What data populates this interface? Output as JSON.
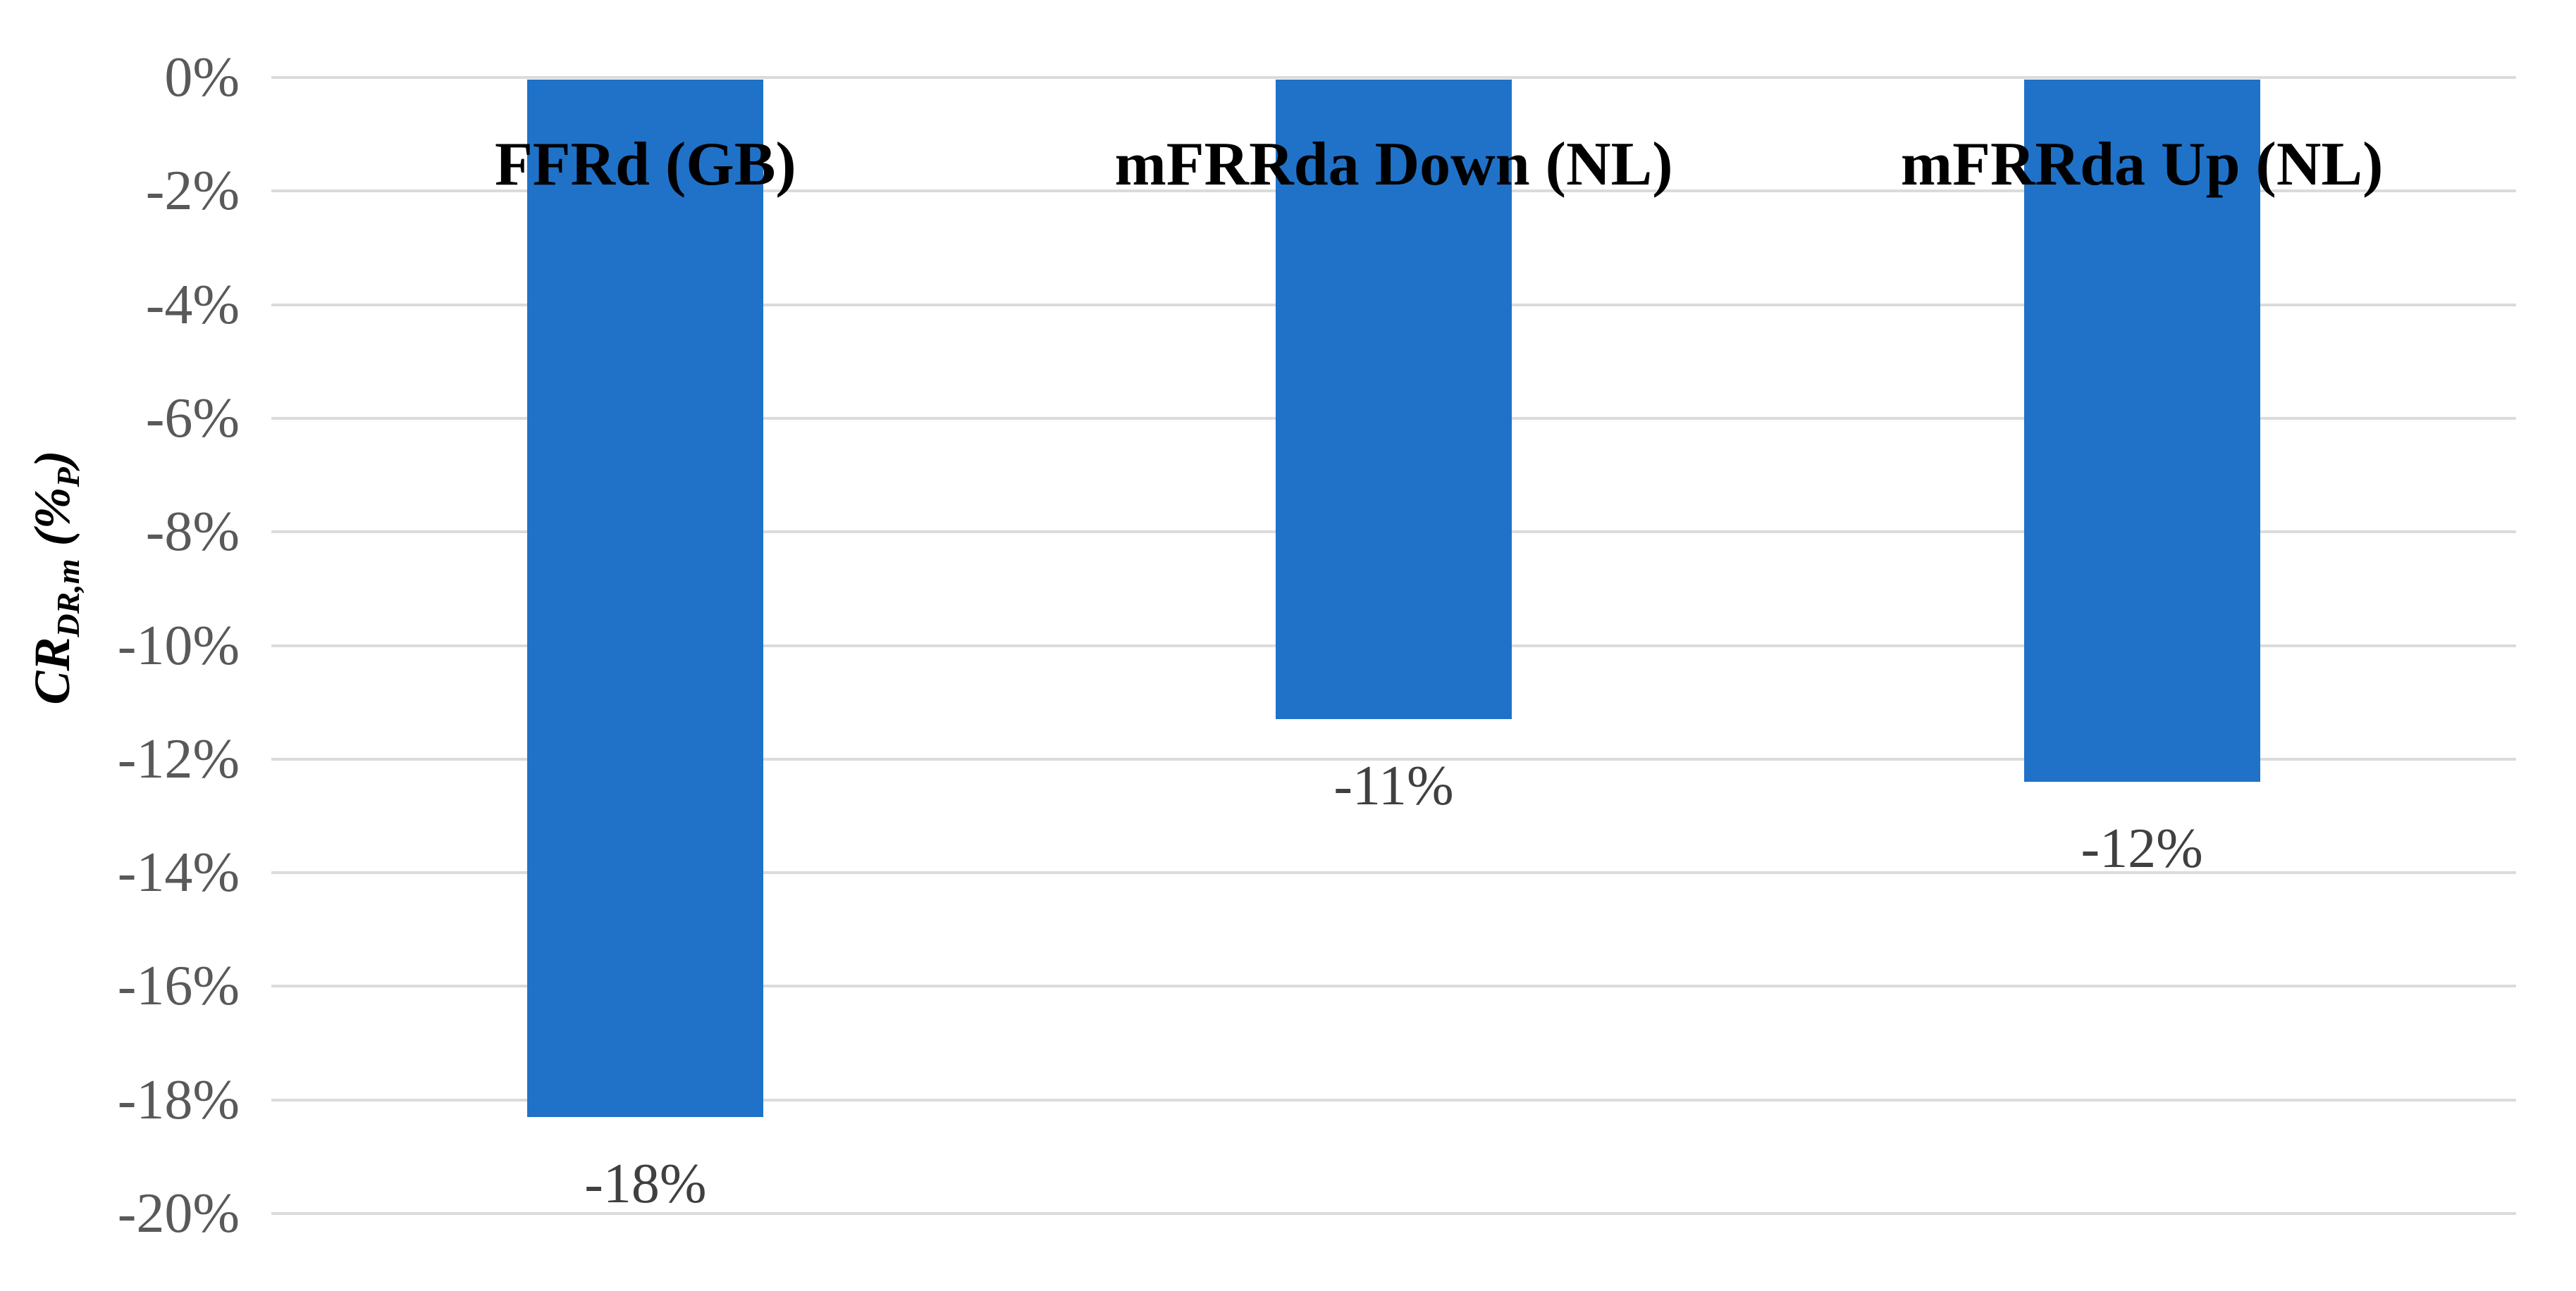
{
  "chart_data": {
    "type": "bar",
    "title": "",
    "categories": [
      "FFRd (GB)",
      "mFRRda Down (NL)",
      "mFRRda Up (NL)"
    ],
    "values": [
      -18.3,
      -11.3,
      -12.4
    ],
    "data_labels": [
      "-18%",
      "-11%",
      "-12%"
    ],
    "ylabel": "CR_DR,m (%_P)",
    "ylabel_parts": {
      "main": "CR",
      "main_sub": "DR,m",
      "unit_pre": " (%",
      "unit_sub": "P",
      "unit_post": ")"
    },
    "yticks": [
      "0%",
      "-2%",
      "-4%",
      "-6%",
      "-8%",
      "-10%",
      "-12%",
      "-14%",
      "-16%",
      "-18%",
      "-20%"
    ],
    "ytick_values": [
      0,
      -2,
      -4,
      -6,
      -8,
      -10,
      -12,
      -14,
      -16,
      -18,
      -20
    ],
    "ylim": [
      -20,
      0
    ],
    "grid": true,
    "legend": "none",
    "bar_label_position": "outside-end-below",
    "category_label_position": "top",
    "colors": {
      "bar": "#1F72C8",
      "gridline": "#DBDBDB",
      "tick_label": "#595959",
      "data_label": "#404040",
      "category_label": "#000000",
      "background": "#FFFFFF"
    }
  }
}
